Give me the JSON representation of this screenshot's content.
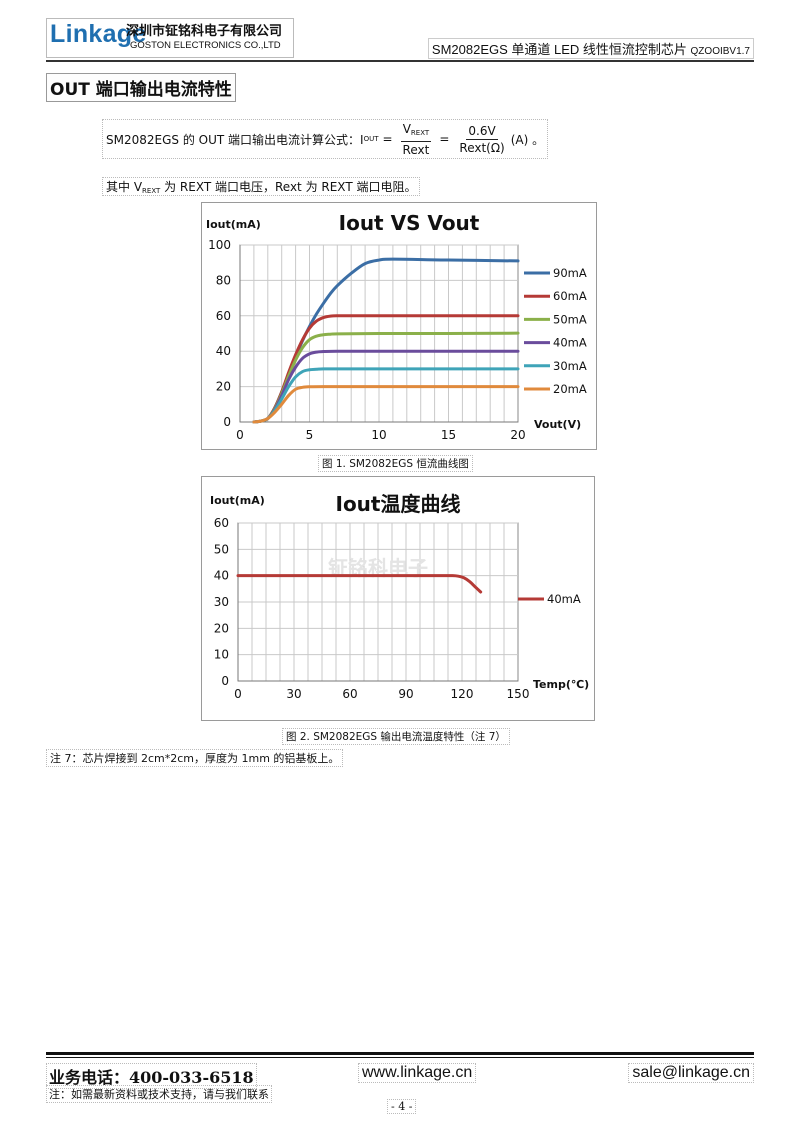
{
  "header": {
    "logo_text": "Linkage",
    "company_cn": "深圳市钲铭科电子有限公司",
    "company_en": "GOSTON ELECTRONICS CO.,LTD",
    "doc_title": "SM2082EGS 单通道 LED 线性恒流控制芯片",
    "doc_version": "QZOOIBV1.7"
  },
  "section": {
    "title": "OUT 端口输出电流特性",
    "formula_lead": "SM2082EGS 的 OUT 端口输出电流计算公式：I",
    "formula_lead_sub": "OUT",
    "formula_eq1": "=",
    "formula_num1": "V",
    "formula_num1_sub": "REXT",
    "formula_den1": "Rext",
    "formula_eq2": "=",
    "formula_num2": "0.6V",
    "formula_den2": "Rext(Ω)",
    "formula_tail": "(A) 。",
    "desc_a": "其中 V",
    "desc_sub": "REXT",
    "desc_b": " 为 REXT 端口电压，Rext 为 REXT 端口电阻。"
  },
  "chart_data": [
    {
      "type": "line",
      "title": "Iout VS Vout",
      "ylabel": "Iout(mA)",
      "xlabel": "Vout(V)",
      "xlim": [
        0,
        20
      ],
      "ylim": [
        0,
        100
      ],
      "xticks": [
        0,
        5,
        10,
        15,
        20
      ],
      "yticks": [
        0,
        20,
        40,
        60,
        80,
        100
      ],
      "grid": true,
      "legend_position": "right",
      "series": [
        {
          "name": "90mA",
          "color": "#3b6ea5",
          "x": [
            1,
            1.5,
            2,
            2.5,
            3,
            3.5,
            4,
            4.5,
            5,
            5.5,
            6,
            6.5,
            7,
            8,
            9,
            10,
            11,
            15,
            20
          ],
          "y": [
            0,
            0.5,
            2,
            8,
            17,
            27,
            37,
            46,
            54,
            61,
            67,
            72.5,
            77,
            84,
            89.5,
            91.5,
            92,
            91.5,
            91
          ]
        },
        {
          "name": "60mA",
          "color": "#b53a36",
          "x": [
            1,
            1.5,
            2,
            2.5,
            3,
            3.5,
            4,
            4.5,
            5,
            5.5,
            6,
            6.5,
            7,
            8,
            10,
            15,
            20
          ],
          "y": [
            0,
            0.5,
            2,
            8,
            17,
            28,
            38,
            46.5,
            53,
            57,
            59,
            59.8,
            60,
            60,
            60,
            60,
            60
          ]
        },
        {
          "name": "50mA",
          "color": "#8bb04a",
          "x": [
            1,
            1.5,
            2,
            2.5,
            3,
            3.5,
            4,
            4.5,
            5,
            5.5,
            6,
            6.5,
            7,
            10,
            15,
            20
          ],
          "y": [
            0,
            0.5,
            2,
            7.5,
            16,
            26,
            35,
            42,
            46.5,
            48.5,
            49.3,
            49.6,
            49.8,
            50,
            50,
            50.2
          ]
        },
        {
          "name": "40mA",
          "color": "#6a4c9c",
          "x": [
            1,
            1.5,
            2,
            2.5,
            3,
            3.5,
            4,
            4.5,
            5,
            5.5,
            6,
            7,
            10,
            15,
            20
          ],
          "y": [
            0,
            0.5,
            2,
            7,
            15,
            24,
            31,
            36,
            38.5,
            39.5,
            39.8,
            40,
            40,
            40,
            40
          ]
        },
        {
          "name": "30mA",
          "color": "#3fa4b8",
          "x": [
            1,
            1.5,
            2,
            2.5,
            3,
            3.5,
            4,
            4.5,
            5,
            5.5,
            6,
            7,
            10,
            15,
            20
          ],
          "y": [
            0,
            0.5,
            2,
            6.5,
            13,
            20,
            25.5,
            28.5,
            29.5,
            29.8,
            30,
            30,
            30,
            30,
            30
          ]
        },
        {
          "name": "20mA",
          "color": "#e08a3c",
          "x": [
            1,
            1.5,
            2,
            2.5,
            3,
            3.5,
            4,
            4.5,
            5,
            6,
            10,
            15,
            20
          ],
          "y": [
            0,
            0.5,
            2,
            5.5,
            10,
            15,
            18.5,
            19.6,
            19.9,
            20,
            20,
            20,
            20
          ]
        }
      ]
    },
    {
      "type": "line",
      "title": "Iout温度曲线",
      "ylabel": "Iout(mA)",
      "xlabel": "Temp(℃)",
      "xlim": [
        0,
        150
      ],
      "ylim": [
        0,
        60
      ],
      "xticks": [
        0,
        30,
        60,
        90,
        120,
        150
      ],
      "yticks": [
        0,
        10,
        20,
        30,
        40,
        50,
        60
      ],
      "grid": true,
      "legend_position": "right",
      "watermark": "钲铭科电子",
      "series": [
        {
          "name": "40mA",
          "color": "#b53a36",
          "x": [
            0,
            30,
            60,
            90,
            110,
            115,
            118,
            121,
            124,
            127,
            130
          ],
          "y": [
            40,
            40,
            40,
            40,
            40,
            40,
            39.8,
            39.2,
            37.8,
            35.8,
            33.8
          ]
        }
      ]
    }
  ],
  "captions": {
    "fig1": "图 1. SM2082EGS  恒流曲线图",
    "fig2": "图 2. SM2082EGS  输出电流温度特性（注 7）"
  },
  "note": "注 7：芯片焊接到 2cm*2cm，厚度为 1mm 的铝基板上。",
  "footer": {
    "phone": "业务电话：400-033-6518",
    "website": "www.linkage.cn",
    "email": "sale@linkage.cn",
    "note": "注：如需最新资料或技术支持，请与我们联系",
    "page": "- 4 -"
  }
}
